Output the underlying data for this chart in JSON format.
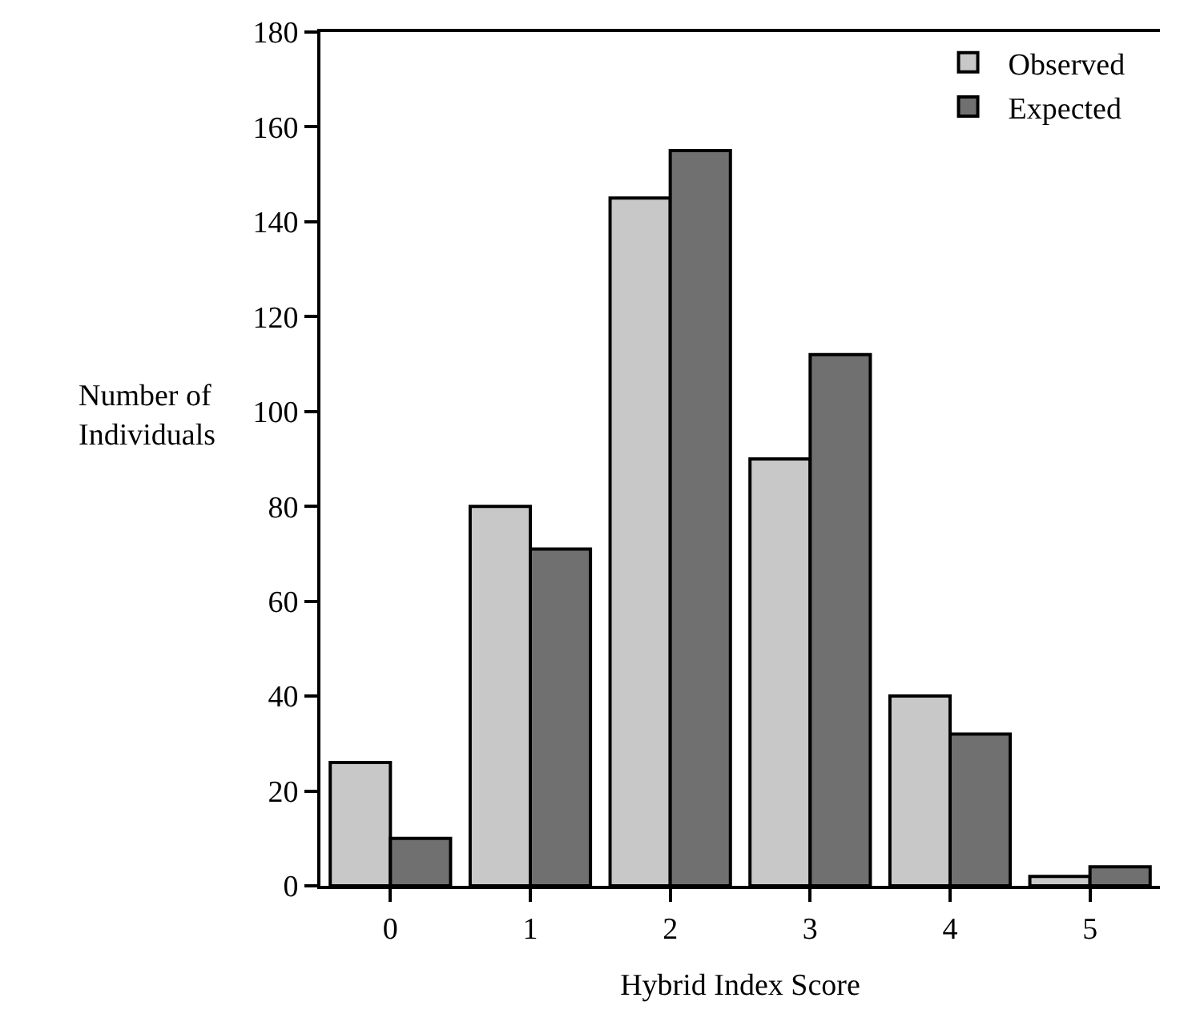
{
  "chart_data": {
    "type": "bar",
    "xlabel": "Hybrid Index Score",
    "ylabel": "Number of\nIndividuals",
    "categories": [
      "0",
      "1",
      "2",
      "3",
      "4",
      "5"
    ],
    "series": [
      {
        "name": "Observed",
        "color": "#c8c8c8",
        "values": [
          26,
          80,
          145,
          90,
          40,
          2
        ]
      },
      {
        "name": "Expected",
        "color": "#707070",
        "values": [
          10,
          71,
          155,
          112,
          32,
          4
        ]
      }
    ],
    "ylim": [
      0,
      180
    ],
    "yticks": [
      0,
      20,
      40,
      60,
      80,
      100,
      120,
      140,
      160,
      180
    ],
    "grid": false,
    "legend": "top right"
  }
}
